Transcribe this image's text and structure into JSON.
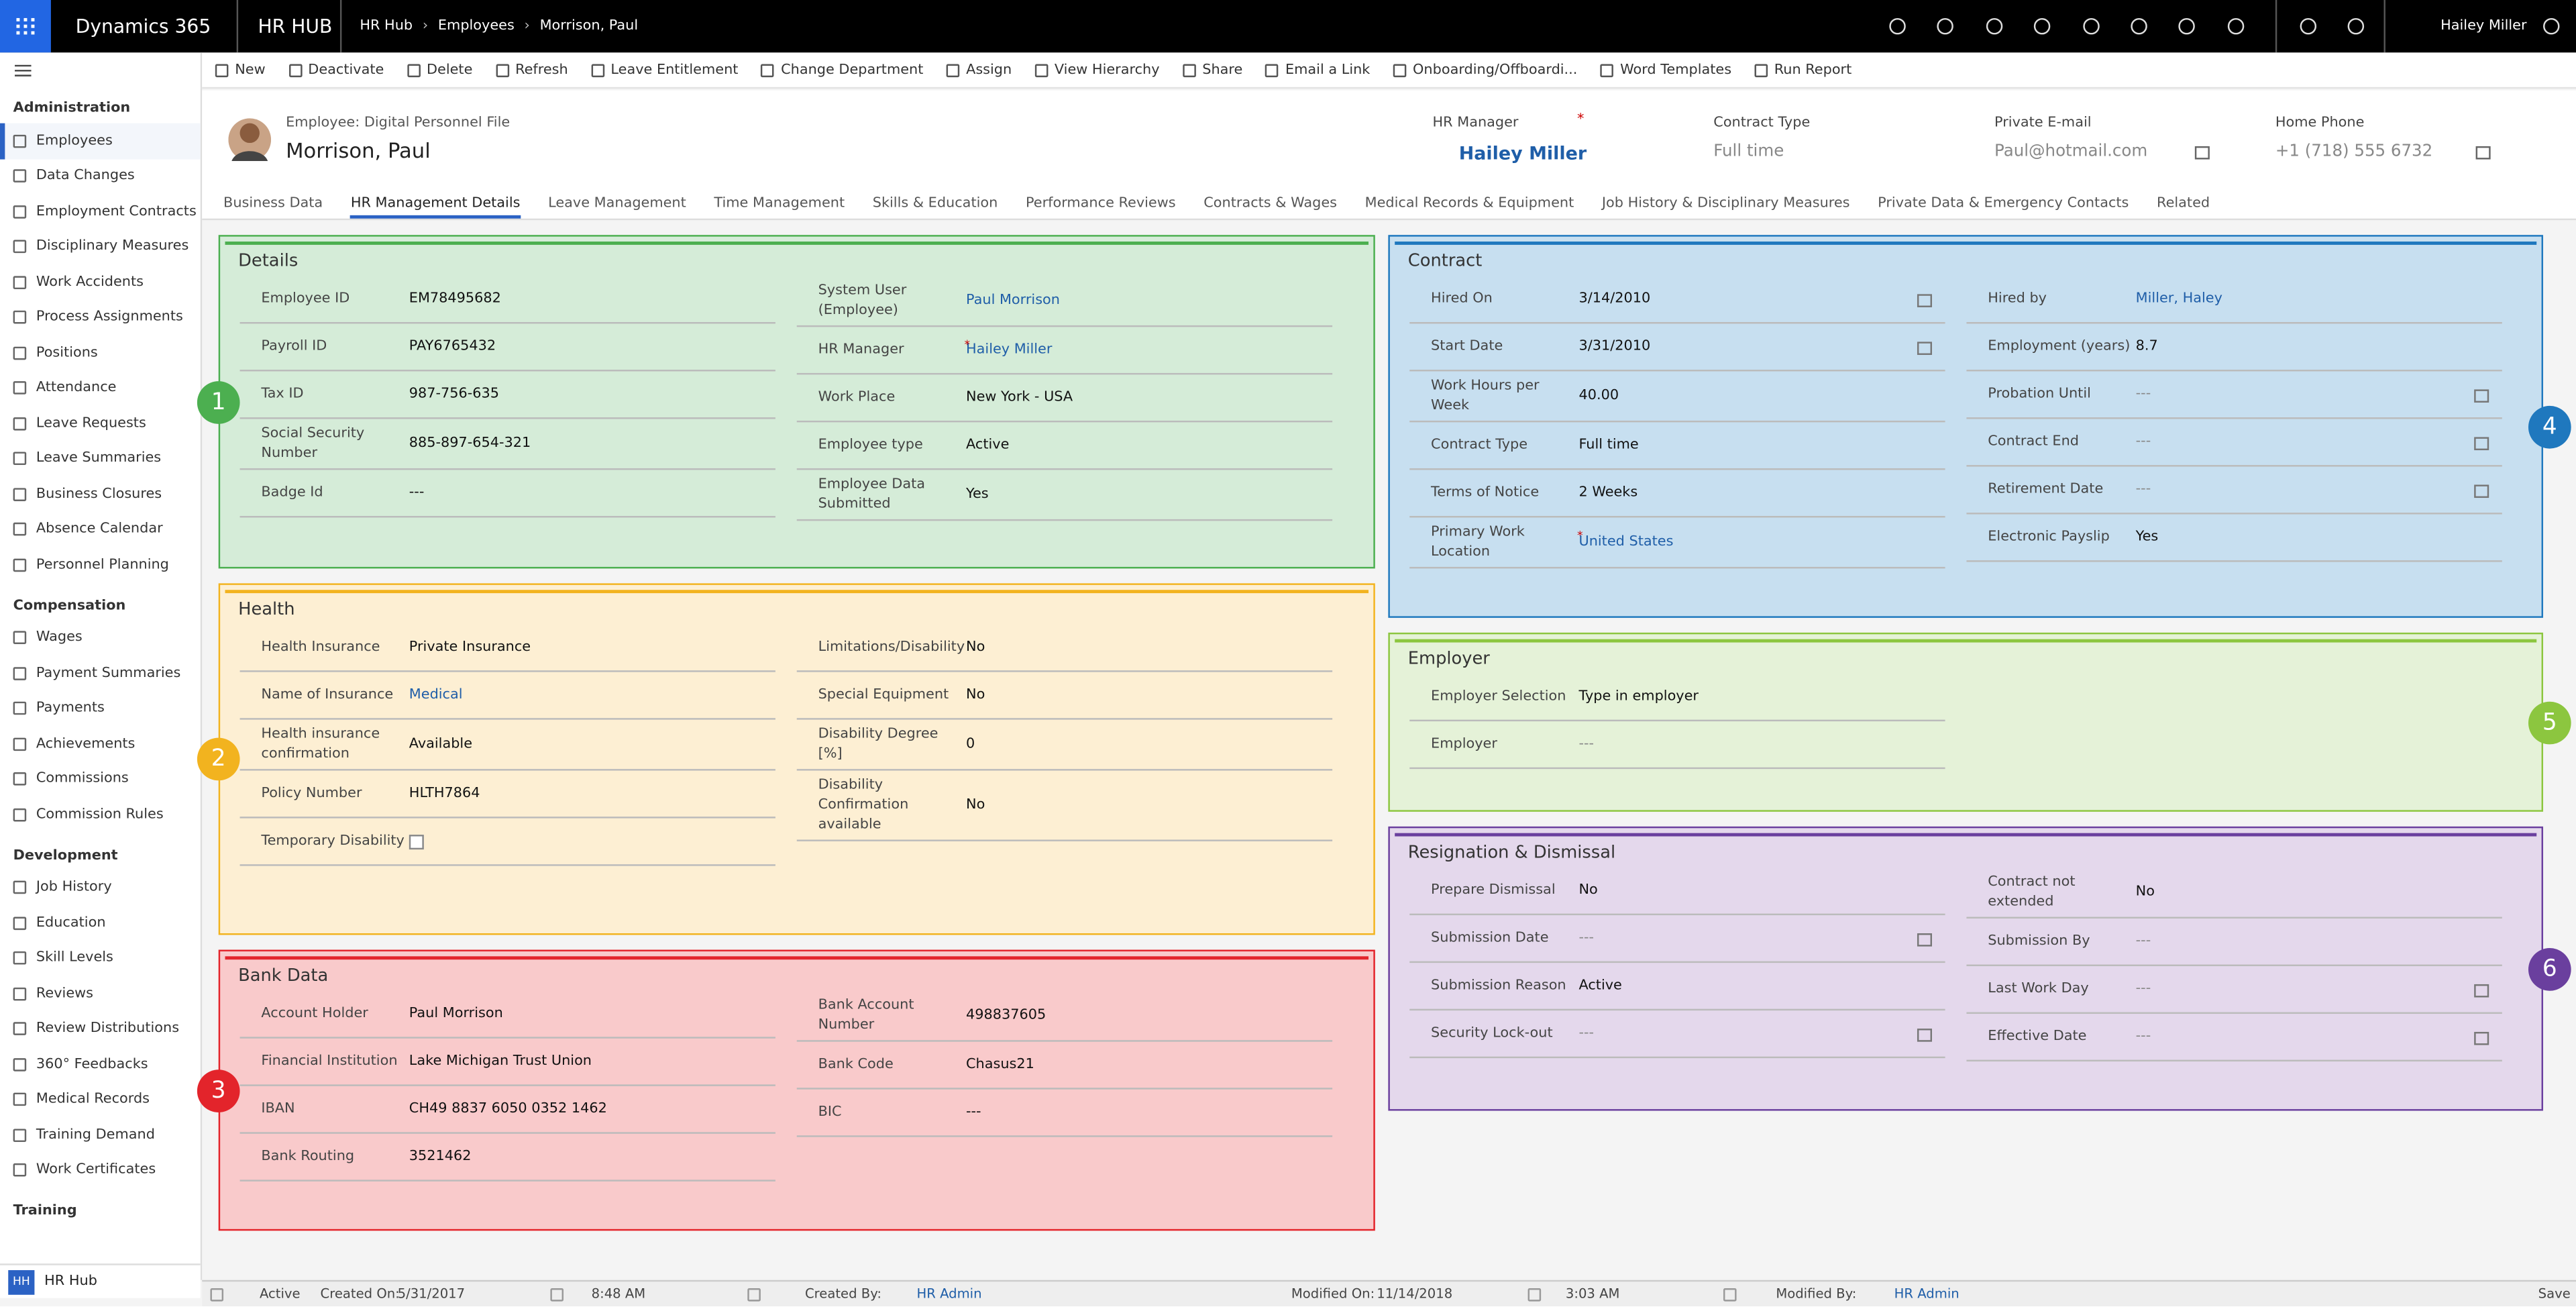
{
  "topbar": {
    "app": "Dynamics 365",
    "area": "HR HUB",
    "breadcrumb": [
      "HR Hub",
      "Employees",
      "Morrison, Paul"
    ],
    "user": "Hailey Miller"
  },
  "sidebar": {
    "groups": [
      {
        "title": "Administration",
        "items": [
          "Employees",
          "Data Changes",
          "Employment Contracts",
          "Disciplinary Measures",
          "Work Accidents",
          "Process Assignments",
          "Positions",
          "Attendance",
          "Leave Requests",
          "Leave Summaries",
          "Business Closures",
          "Absence Calendar",
          "Personnel Planning"
        ]
      },
      {
        "title": "Compensation",
        "items": [
          "Wages",
          "Payment Summaries",
          "Payments",
          "Achievements",
          "Commissions",
          "Commission Rules"
        ]
      },
      {
        "title": "Development",
        "items": [
          "Job History",
          "Education",
          "Skill Levels",
          "Reviews",
          "Review Distributions",
          "360° Feedbacks",
          "Medical Records",
          "Training Demand",
          "Work Certificates"
        ]
      },
      {
        "title": "Training",
        "items": []
      }
    ],
    "footer_badge": "HH",
    "footer": "HR Hub"
  },
  "commands": [
    "New",
    "Deactivate",
    "Delete",
    "Refresh",
    "Leave Entitlement",
    "Change Department",
    "Assign",
    "View Hierarchy",
    "Share",
    "Email a Link",
    "Onboarding/Offboardi...",
    "Word Templates",
    "Run Report"
  ],
  "header": {
    "form": "Employee: Digital Personnel File",
    "name": "Morrison, Paul",
    "fields": [
      {
        "label": "HR Manager",
        "value": "Hailey Miller",
        "link": true,
        "required": true
      },
      {
        "label": "Contract Type",
        "value": "Full time"
      },
      {
        "label": "Private E-mail",
        "value": "Paul@hotmail.com"
      },
      {
        "label": "Home Phone",
        "value": "+1 (718)  555 6732"
      }
    ]
  },
  "tabs": [
    "Business Data",
    "HR Management Details",
    "Leave Management",
    "Time Management",
    "Skills & Education",
    "Performance Reviews",
    "Contracts & Wages",
    "Medical Records & Equipment",
    "Job History & Disciplinary Measures",
    "Private Data & Emergency Contacts",
    "Related"
  ],
  "sections": [
    {
      "title": "Details",
      "badge": "1",
      "color": "#4caf50",
      "fill": "#d5ecd8",
      "columns": [
        [
          {
            "label": "Employee ID",
            "value": "EM78495682"
          },
          {
            "label": "Payroll ID",
            "value": "PAY6765432"
          },
          {
            "label": "Tax ID",
            "value": "987-756-635"
          },
          {
            "label": "Social Security Number",
            "value": "885-897-654-321"
          },
          {
            "label": "Badge Id",
            "value": "---"
          }
        ],
        [
          {
            "label": "System User (Employee)",
            "value": "Paul Morrison",
            "link": true
          },
          {
            "label": "HR Manager",
            "value": "Hailey Miller",
            "link": true,
            "required": true
          },
          {
            "label": "Work Place",
            "value": "New York - USA"
          },
          {
            "label": "Employee type",
            "value": "Active"
          },
          {
            "label": "Employee Data Submitted",
            "value": "Yes"
          }
        ]
      ]
    },
    {
      "title": "Health",
      "badge": "2",
      "color": "#f2b31f",
      "fill": "#fdefd3",
      "columns": [
        [
          {
            "label": "Health Insurance",
            "value": "Private Insurance"
          },
          {
            "label": "Name of Insurance",
            "value": "Medical",
            "link": true
          },
          {
            "label": "Health insurance confirmation",
            "value": "Available"
          },
          {
            "label": "Policy Number",
            "value": "HLTH7864"
          },
          {
            "label": "Temporary Disability",
            "checkbox": true
          }
        ],
        [
          {
            "label": "Limitations/Disability",
            "value": "No"
          },
          {
            "label": "Special Equipment",
            "value": "No"
          },
          {
            "label": "Disability Degree [%]",
            "value": "0"
          },
          {
            "label": "Disability Confirmation available",
            "value": "No"
          }
        ]
      ]
    },
    {
      "title": "Bank Data",
      "badge": "3",
      "color": "#e3242b",
      "fill": "#f9cacb",
      "columns": [
        [
          {
            "label": "Account Holder",
            "value": "Paul Morrison"
          },
          {
            "label": "Financial Institution",
            "value": "Lake Michigan Trust Union"
          },
          {
            "label": "IBAN",
            "value": "CH49 8837 6050 0352 1462"
          },
          {
            "label": "Bank Routing",
            "value": "3521462"
          }
        ],
        [
          {
            "label": "Bank Account Number",
            "value": "498837605"
          },
          {
            "label": "Bank Code",
            "value": "Chasus21"
          },
          {
            "label": "BIC",
            "value": "---"
          }
        ]
      ]
    },
    {
      "title": "Contract",
      "badge": "4",
      "color": "#1f78be",
      "fill": "#c7dff0",
      "columns": [
        [
          {
            "label": "Hired On",
            "value": "3/14/2010",
            "date": true
          },
          {
            "label": "Start Date",
            "value": "3/31/2010",
            "date": true
          },
          {
            "label": "Work Hours per Week",
            "value": "40.00"
          },
          {
            "label": "Contract Type",
            "value": "Full time"
          },
          {
            "label": "Terms of Notice",
            "value": "2 Weeks"
          },
          {
            "label": "Primary Work Location",
            "value": "United States",
            "link": true,
            "required": true
          }
        ],
        [
          {
            "label": "Hired by",
            "value": "Miller, Haley",
            "link": true
          },
          {
            "label": "Employment (years)",
            "value": "8.7"
          },
          {
            "label": "Probation Until",
            "value": "---",
            "date": true
          },
          {
            "label": "Contract End",
            "value": "---",
            "date": true
          },
          {
            "label": "Retirement Date",
            "value": "---",
            "date": true
          },
          {
            "label": "Electronic Payslip",
            "value": "Yes"
          }
        ]
      ]
    },
    {
      "title": "Employer",
      "badge": "5",
      "color": "#8cc63f",
      "fill": "#e5f2d8",
      "columns": [
        [
          {
            "label": "Employer Selection",
            "value": "Type in employer"
          },
          {
            "label": "Employer",
            "value": "---"
          }
        ],
        []
      ]
    },
    {
      "title": "Resignation & Dismissal",
      "badge": "6",
      "color": "#6a3f9e",
      "fill": "#e4d8ec",
      "columns": [
        [
          {
            "label": "Prepare Dismissal",
            "value": "No"
          },
          {
            "label": "Submission Date",
            "value": "---",
            "date": true
          },
          {
            "label": "Submission Reason",
            "value": "Active"
          },
          {
            "label": "Security Lock-out",
            "value": "---",
            "date": true
          }
        ],
        [
          {
            "label": "Contract not extended",
            "value": "No"
          },
          {
            "label": "Submission By",
            "value": "---"
          },
          {
            "label": "Last Work Day",
            "value": "---",
            "date": true
          },
          {
            "label": "Effective Date",
            "value": "---",
            "date": true
          }
        ]
      ]
    }
  ],
  "status": [
    "Active",
    "Created On:",
    "5/31/2017",
    "8:48 AM",
    "Created By:",
    "HR Admin",
    "Modified On:",
    "11/14/2018",
    "3:03 AM",
    "Modified By:",
    "HR Admin",
    "Save"
  ]
}
